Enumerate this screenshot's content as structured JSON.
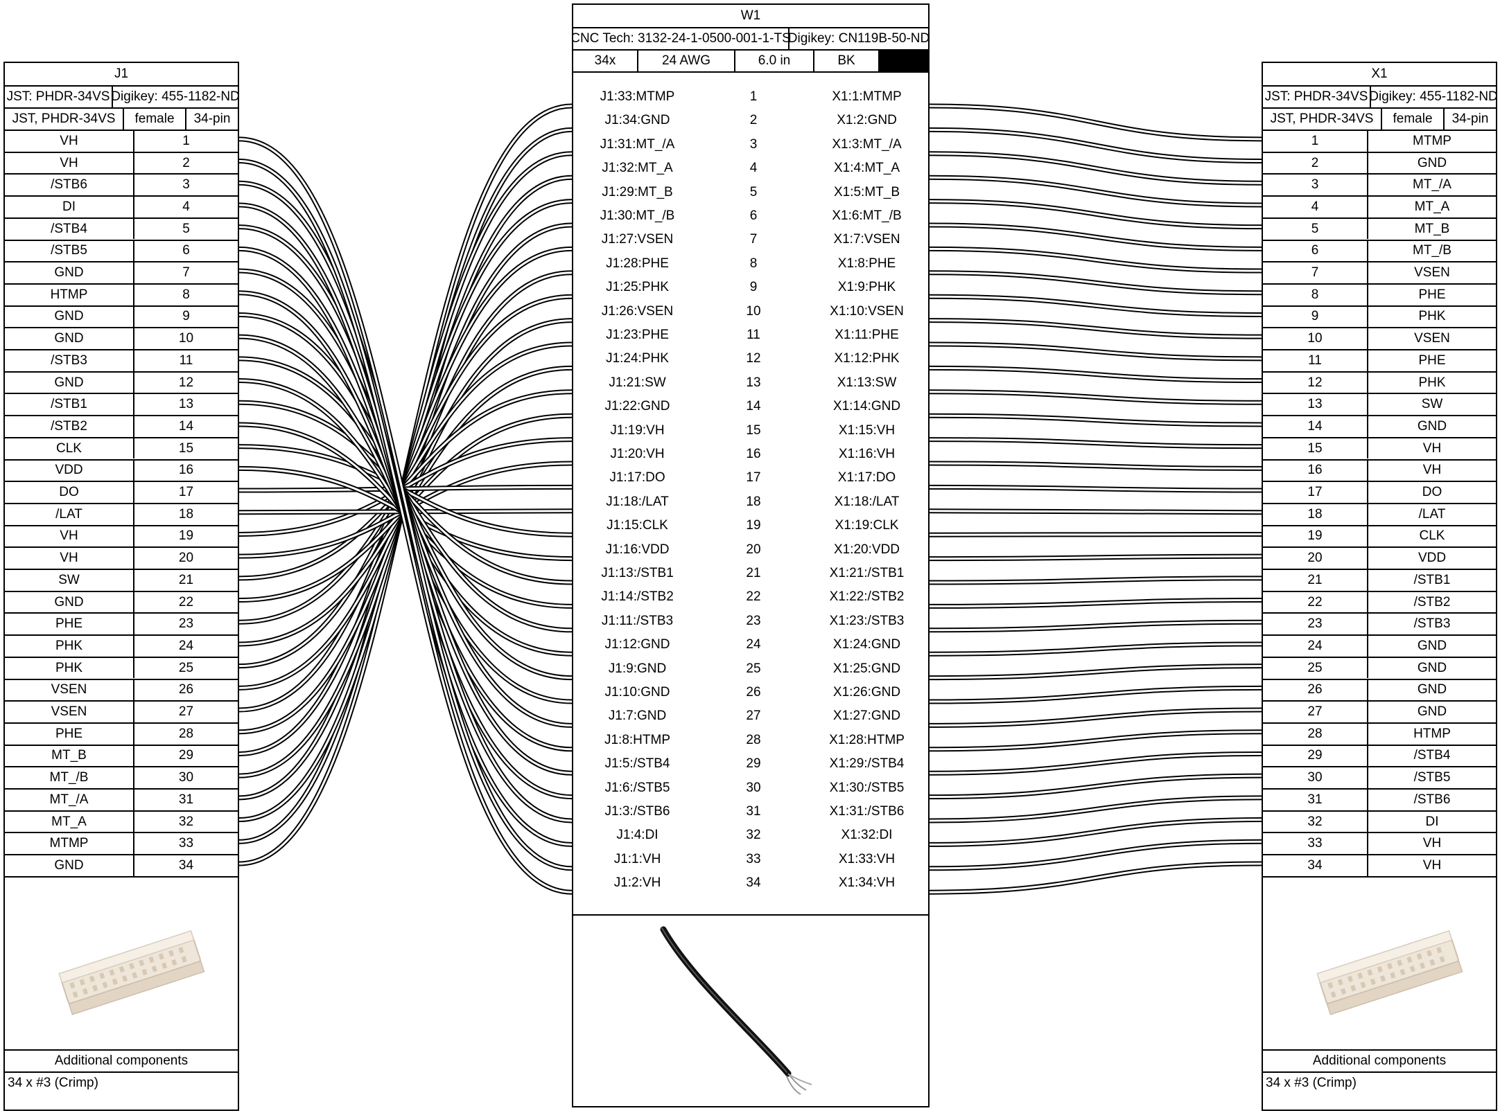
{
  "connectors": {
    "J1": {
      "name": "J1",
      "part_left": "JST: PHDR-34VS",
      "part_right": "Digikey: 455-1182-ND",
      "spec": [
        "JST, PHDR-34VS",
        "female",
        "34-pin"
      ],
      "pins": [
        {
          "num": "1",
          "label": "VH"
        },
        {
          "num": "2",
          "label": "VH"
        },
        {
          "num": "3",
          "label": "/STB6"
        },
        {
          "num": "4",
          "label": "DI"
        },
        {
          "num": "5",
          "label": "/STB4"
        },
        {
          "num": "6",
          "label": "/STB5"
        },
        {
          "num": "7",
          "label": "GND"
        },
        {
          "num": "8",
          "label": "HTMP"
        },
        {
          "num": "9",
          "label": "GND"
        },
        {
          "num": "10",
          "label": "GND"
        },
        {
          "num": "11",
          "label": "/STB3"
        },
        {
          "num": "12",
          "label": "GND"
        },
        {
          "num": "13",
          "label": "/STB1"
        },
        {
          "num": "14",
          "label": "/STB2"
        },
        {
          "num": "15",
          "label": "CLK"
        },
        {
          "num": "16",
          "label": "VDD"
        },
        {
          "num": "17",
          "label": "DO"
        },
        {
          "num": "18",
          "label": "/LAT"
        },
        {
          "num": "19",
          "label": "VH"
        },
        {
          "num": "20",
          "label": "VH"
        },
        {
          "num": "21",
          "label": "SW"
        },
        {
          "num": "22",
          "label": "GND"
        },
        {
          "num": "23",
          "label": "PHE"
        },
        {
          "num": "24",
          "label": "PHK"
        },
        {
          "num": "25",
          "label": "PHK"
        },
        {
          "num": "26",
          "label": "VSEN"
        },
        {
          "num": "27",
          "label": "VSEN"
        },
        {
          "num": "28",
          "label": "PHE"
        },
        {
          "num": "29",
          "label": "MT_B"
        },
        {
          "num": "30",
          "label": "MT_/B"
        },
        {
          "num": "31",
          "label": "MT_/A"
        },
        {
          "num": "32",
          "label": "MT_A"
        },
        {
          "num": "33",
          "label": "MTMP"
        },
        {
          "num": "34",
          "label": "GND"
        }
      ],
      "additional_title": "Additional components",
      "additional_item": "34 x #3 (Crimp)"
    },
    "X1": {
      "name": "X1",
      "part_left": "JST: PHDR-34VS",
      "part_right": "Digikey: 455-1182-ND",
      "spec": [
        "JST, PHDR-34VS",
        "female",
        "34-pin"
      ],
      "pins": [
        {
          "num": "1",
          "label": "MTMP"
        },
        {
          "num": "2",
          "label": "GND"
        },
        {
          "num": "3",
          "label": "MT_/A"
        },
        {
          "num": "4",
          "label": "MT_A"
        },
        {
          "num": "5",
          "label": "MT_B"
        },
        {
          "num": "6",
          "label": "MT_/B"
        },
        {
          "num": "7",
          "label": "VSEN"
        },
        {
          "num": "8",
          "label": "PHE"
        },
        {
          "num": "9",
          "label": "PHK"
        },
        {
          "num": "10",
          "label": "VSEN"
        },
        {
          "num": "11",
          "label": "PHE"
        },
        {
          "num": "12",
          "label": "PHK"
        },
        {
          "num": "13",
          "label": "SW"
        },
        {
          "num": "14",
          "label": "GND"
        },
        {
          "num": "15",
          "label": "VH"
        },
        {
          "num": "16",
          "label": "VH"
        },
        {
          "num": "17",
          "label": "DO"
        },
        {
          "num": "18",
          "label": "/LAT"
        },
        {
          "num": "19",
          "label": "CLK"
        },
        {
          "num": "20",
          "label": "VDD"
        },
        {
          "num": "21",
          "label": "/STB1"
        },
        {
          "num": "22",
          "label": "/STB2"
        },
        {
          "num": "23",
          "label": "/STB3"
        },
        {
          "num": "24",
          "label": "GND"
        },
        {
          "num": "25",
          "label": "GND"
        },
        {
          "num": "26",
          "label": "GND"
        },
        {
          "num": "27",
          "label": "GND"
        },
        {
          "num": "28",
          "label": "HTMP"
        },
        {
          "num": "29",
          "label": "/STB4"
        },
        {
          "num": "30",
          "label": "/STB5"
        },
        {
          "num": "31",
          "label": "/STB6"
        },
        {
          "num": "32",
          "label": "DI"
        },
        {
          "num": "33",
          "label": "VH"
        },
        {
          "num": "34",
          "label": "VH"
        }
      ],
      "additional_title": "Additional components",
      "additional_item": "34 x #3 (Crimp)"
    }
  },
  "cable": {
    "name": "W1",
    "part_left": "CNC Tech: 3132-24-1-0500-001-1-TS",
    "part_right": "Digikey: CN119B-50-ND",
    "specs": [
      "34x",
      "24 AWG",
      "6.0 in",
      "BK"
    ],
    "color_hex": "#000000",
    "wires": [
      {
        "left": "J1:33:MTMP",
        "num": "1",
        "right": "X1:1:MTMP"
      },
      {
        "left": "J1:34:GND",
        "num": "2",
        "right": "X1:2:GND"
      },
      {
        "left": "J1:31:MT_/A",
        "num": "3",
        "right": "X1:3:MT_/A"
      },
      {
        "left": "J1:32:MT_A",
        "num": "4",
        "right": "X1:4:MT_A"
      },
      {
        "left": "J1:29:MT_B",
        "num": "5",
        "right": "X1:5:MT_B"
      },
      {
        "left": "J1:30:MT_/B",
        "num": "6",
        "right": "X1:6:MT_/B"
      },
      {
        "left": "J1:27:VSEN",
        "num": "7",
        "right": "X1:7:VSEN"
      },
      {
        "left": "J1:28:PHE",
        "num": "8",
        "right": "X1:8:PHE"
      },
      {
        "left": "J1:25:PHK",
        "num": "9",
        "right": "X1:9:PHK"
      },
      {
        "left": "J1:26:VSEN",
        "num": "10",
        "right": "X1:10:VSEN"
      },
      {
        "left": "J1:23:PHE",
        "num": "11",
        "right": "X1:11:PHE"
      },
      {
        "left": "J1:24:PHK",
        "num": "12",
        "right": "X1:12:PHK"
      },
      {
        "left": "J1:21:SW",
        "num": "13",
        "right": "X1:13:SW"
      },
      {
        "left": "J1:22:GND",
        "num": "14",
        "right": "X1:14:GND"
      },
      {
        "left": "J1:19:VH",
        "num": "15",
        "right": "X1:15:VH"
      },
      {
        "left": "J1:20:VH",
        "num": "16",
        "right": "X1:16:VH"
      },
      {
        "left": "J1:17:DO",
        "num": "17",
        "right": "X1:17:DO"
      },
      {
        "left": "J1:18:/LAT",
        "num": "18",
        "right": "X1:18:/LAT"
      },
      {
        "left": "J1:15:CLK",
        "num": "19",
        "right": "X1:19:CLK"
      },
      {
        "left": "J1:16:VDD",
        "num": "20",
        "right": "X1:20:VDD"
      },
      {
        "left": "J1:13:/STB1",
        "num": "21",
        "right": "X1:21:/STB1"
      },
      {
        "left": "J1:14:/STB2",
        "num": "22",
        "right": "X1:22:/STB2"
      },
      {
        "left": "J1:11:/STB3",
        "num": "23",
        "right": "X1:23:/STB3"
      },
      {
        "left": "J1:12:GND",
        "num": "24",
        "right": "X1:24:GND"
      },
      {
        "left": "J1:9:GND",
        "num": "25",
        "right": "X1:25:GND"
      },
      {
        "left": "J1:10:GND",
        "num": "26",
        "right": "X1:26:GND"
      },
      {
        "left": "J1:7:GND",
        "num": "27",
        "right": "X1:27:GND"
      },
      {
        "left": "J1:8:HTMP",
        "num": "28",
        "right": "X1:28:HTMP"
      },
      {
        "left": "J1:5:/STB4",
        "num": "29",
        "right": "X1:29:/STB4"
      },
      {
        "left": "J1:6:/STB5",
        "num": "30",
        "right": "X1:30:/STB5"
      },
      {
        "left": "J1:3:/STB6",
        "num": "31",
        "right": "X1:31:/STB6"
      },
      {
        "left": "J1:4:DI",
        "num": "32",
        "right": "X1:32:DI"
      },
      {
        "left": "J1:1:VH",
        "num": "33",
        "right": "X1:33:VH"
      },
      {
        "left": "J1:2:VH",
        "num": "34",
        "right": "X1:34:VH"
      }
    ]
  },
  "images": {
    "connector_icon": "pin-header-connector-icon",
    "cable_icon": "black-wire-icon"
  }
}
